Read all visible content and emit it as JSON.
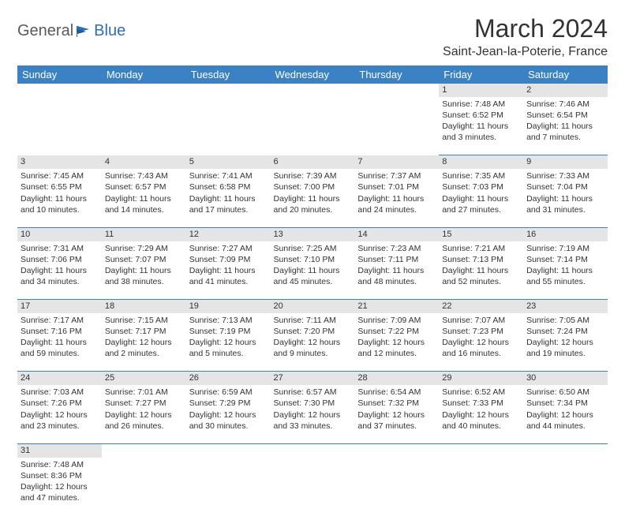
{
  "logo": {
    "general": "General",
    "blue": "Blue"
  },
  "title": "March 2024",
  "location": "Saint-Jean-la-Poterie, France",
  "colors": {
    "header_bg": "#3b82c4",
    "header_text": "#ffffff",
    "daynum_bg": "#e5e5e5",
    "border": "#3b82c4",
    "text": "#333333",
    "logo_gray": "#5a5a5a",
    "logo_blue": "#2a6fb5"
  },
  "weekdays": [
    "Sunday",
    "Monday",
    "Tuesday",
    "Wednesday",
    "Thursday",
    "Friday",
    "Saturday"
  ],
  "weeks": [
    [
      null,
      null,
      null,
      null,
      null,
      {
        "n": "1",
        "sr": "7:48 AM",
        "ss": "6:52 PM",
        "dh": "11",
        "dm": "3"
      },
      {
        "n": "2",
        "sr": "7:46 AM",
        "ss": "6:54 PM",
        "dh": "11",
        "dm": "7"
      }
    ],
    [
      {
        "n": "3",
        "sr": "7:45 AM",
        "ss": "6:55 PM",
        "dh": "11",
        "dm": "10"
      },
      {
        "n": "4",
        "sr": "7:43 AM",
        "ss": "6:57 PM",
        "dh": "11",
        "dm": "14"
      },
      {
        "n": "5",
        "sr": "7:41 AM",
        "ss": "6:58 PM",
        "dh": "11",
        "dm": "17"
      },
      {
        "n": "6",
        "sr": "7:39 AM",
        "ss": "7:00 PM",
        "dh": "11",
        "dm": "20"
      },
      {
        "n": "7",
        "sr": "7:37 AM",
        "ss": "7:01 PM",
        "dh": "11",
        "dm": "24"
      },
      {
        "n": "8",
        "sr": "7:35 AM",
        "ss": "7:03 PM",
        "dh": "11",
        "dm": "27"
      },
      {
        "n": "9",
        "sr": "7:33 AM",
        "ss": "7:04 PM",
        "dh": "11",
        "dm": "31"
      }
    ],
    [
      {
        "n": "10",
        "sr": "7:31 AM",
        "ss": "7:06 PM",
        "dh": "11",
        "dm": "34"
      },
      {
        "n": "11",
        "sr": "7:29 AM",
        "ss": "7:07 PM",
        "dh": "11",
        "dm": "38"
      },
      {
        "n": "12",
        "sr": "7:27 AM",
        "ss": "7:09 PM",
        "dh": "11",
        "dm": "41"
      },
      {
        "n": "13",
        "sr": "7:25 AM",
        "ss": "7:10 PM",
        "dh": "11",
        "dm": "45"
      },
      {
        "n": "14",
        "sr": "7:23 AM",
        "ss": "7:11 PM",
        "dh": "11",
        "dm": "48"
      },
      {
        "n": "15",
        "sr": "7:21 AM",
        "ss": "7:13 PM",
        "dh": "11",
        "dm": "52"
      },
      {
        "n": "16",
        "sr": "7:19 AM",
        "ss": "7:14 PM",
        "dh": "11",
        "dm": "55"
      }
    ],
    [
      {
        "n": "17",
        "sr": "7:17 AM",
        "ss": "7:16 PM",
        "dh": "11",
        "dm": "59"
      },
      {
        "n": "18",
        "sr": "7:15 AM",
        "ss": "7:17 PM",
        "dh": "12",
        "dm": "2"
      },
      {
        "n": "19",
        "sr": "7:13 AM",
        "ss": "7:19 PM",
        "dh": "12",
        "dm": "5"
      },
      {
        "n": "20",
        "sr": "7:11 AM",
        "ss": "7:20 PM",
        "dh": "12",
        "dm": "9"
      },
      {
        "n": "21",
        "sr": "7:09 AM",
        "ss": "7:22 PM",
        "dh": "12",
        "dm": "12"
      },
      {
        "n": "22",
        "sr": "7:07 AM",
        "ss": "7:23 PM",
        "dh": "12",
        "dm": "16"
      },
      {
        "n": "23",
        "sr": "7:05 AM",
        "ss": "7:24 PM",
        "dh": "12",
        "dm": "19"
      }
    ],
    [
      {
        "n": "24",
        "sr": "7:03 AM",
        "ss": "7:26 PM",
        "dh": "12",
        "dm": "23"
      },
      {
        "n": "25",
        "sr": "7:01 AM",
        "ss": "7:27 PM",
        "dh": "12",
        "dm": "26"
      },
      {
        "n": "26",
        "sr": "6:59 AM",
        "ss": "7:29 PM",
        "dh": "12",
        "dm": "30"
      },
      {
        "n": "27",
        "sr": "6:57 AM",
        "ss": "7:30 PM",
        "dh": "12",
        "dm": "33"
      },
      {
        "n": "28",
        "sr": "6:54 AM",
        "ss": "7:32 PM",
        "dh": "12",
        "dm": "37"
      },
      {
        "n": "29",
        "sr": "6:52 AM",
        "ss": "7:33 PM",
        "dh": "12",
        "dm": "40"
      },
      {
        "n": "30",
        "sr": "6:50 AM",
        "ss": "7:34 PM",
        "dh": "12",
        "dm": "44"
      }
    ],
    [
      {
        "n": "31",
        "sr": "7:48 AM",
        "ss": "8:36 PM",
        "dh": "12",
        "dm": "47"
      },
      null,
      null,
      null,
      null,
      null,
      null
    ]
  ],
  "labels": {
    "sunrise": "Sunrise:",
    "sunset": "Sunset:",
    "daylight": "Daylight:",
    "hours": "hours",
    "and": "and",
    "minutes": "minutes."
  }
}
